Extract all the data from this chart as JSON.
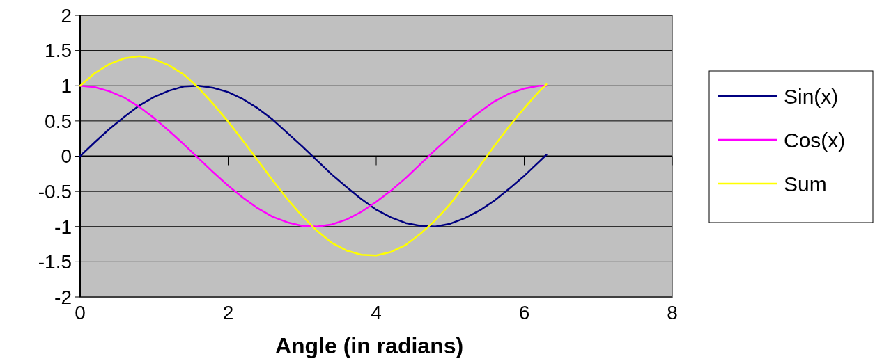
{
  "chart_data": {
    "type": "line",
    "xlabel": "Angle (in radians)",
    "x": [
      0,
      0.2,
      0.4,
      0.6,
      0.8,
      1.0,
      1.2,
      1.4,
      1.6,
      1.8,
      2.0,
      2.2,
      2.4,
      2.6,
      2.8,
      3.0,
      3.2,
      3.4,
      3.6,
      3.8,
      4.0,
      4.2,
      4.4,
      4.6,
      4.8,
      5.0,
      5.2,
      5.4,
      5.6,
      5.8,
      6.0,
      6.2,
      6.3
    ],
    "series": [
      {
        "name": "Sin(x)",
        "color": "#000080",
        "values": [
          0,
          0.2,
          0.39,
          0.56,
          0.72,
          0.84,
          0.93,
          0.99,
          1.0,
          0.97,
          0.91,
          0.81,
          0.68,
          0.52,
          0.33,
          0.14,
          -0.06,
          -0.26,
          -0.44,
          -0.61,
          -0.76,
          -0.87,
          -0.95,
          -0.99,
          -1.0,
          -0.96,
          -0.88,
          -0.77,
          -0.63,
          -0.46,
          -0.28,
          -0.08,
          0.02
        ]
      },
      {
        "name": "Cos(x)",
        "color": "#ff00ff",
        "values": [
          1,
          0.98,
          0.92,
          0.83,
          0.7,
          0.54,
          0.36,
          0.17,
          -0.03,
          -0.23,
          -0.42,
          -0.59,
          -0.74,
          -0.86,
          -0.94,
          -0.99,
          -1.0,
          -0.97,
          -0.9,
          -0.79,
          -0.65,
          -0.49,
          -0.31,
          -0.11,
          0.09,
          0.28,
          0.47,
          0.63,
          0.78,
          0.89,
          0.96,
          1.0,
          1.0
        ]
      },
      {
        "name": "Sum",
        "color": "#ffff00",
        "values": [
          1,
          1.18,
          1.31,
          1.39,
          1.42,
          1.38,
          1.29,
          1.16,
          0.97,
          0.74,
          0.49,
          0.22,
          -0.06,
          -0.34,
          -0.61,
          -0.85,
          -1.06,
          -1.23,
          -1.34,
          -1.4,
          -1.41,
          -1.36,
          -1.26,
          -1.1,
          -0.91,
          -0.68,
          -0.41,
          -0.14,
          0.15,
          0.43,
          0.68,
          0.92,
          1.02
        ]
      }
    ],
    "xlim": [
      0,
      8
    ],
    "xticks": [
      0,
      2,
      4,
      6,
      8
    ],
    "ylim": [
      -2,
      2
    ],
    "yticks": [
      -2,
      -1.5,
      -1,
      -0.5,
      0,
      0.5,
      1,
      1.5,
      2
    ],
    "grid": "y",
    "legend": "right",
    "marker": "none",
    "line_style": "solid"
  }
}
